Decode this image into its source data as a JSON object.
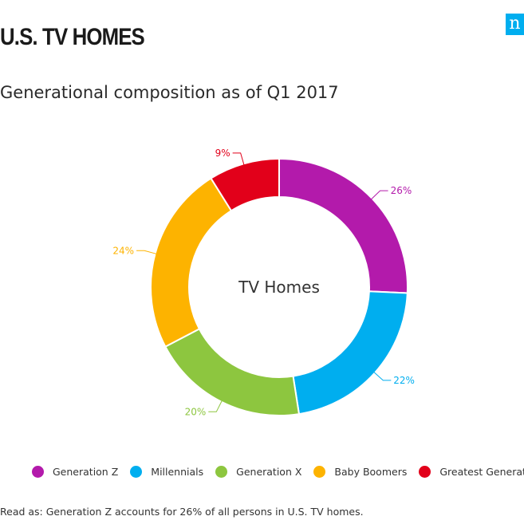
{
  "header": {
    "title": "U.S. TV HOMES",
    "subtitle": "Generational composition as of Q1 2017",
    "logo_text": "n"
  },
  "colors": {
    "brand": "#00aeef"
  },
  "chart_data": {
    "type": "pie",
    "variant": "donut",
    "center_label": "TV Homes",
    "categories": [
      "Generation Z",
      "Millennials",
      "Generation X",
      "Baby Boomers",
      "Greatest Generation"
    ],
    "values": [
      26,
      22,
      20,
      24,
      9
    ],
    "value_labels": [
      "26%",
      "22%",
      "20%",
      "24%",
      "9%"
    ],
    "colors": [
      "#b31aab",
      "#00aeef",
      "#8dc63f",
      "#fdb300",
      "#e2001a"
    ],
    "legend_position": "bottom"
  },
  "footnote": "Read as: Generation Z accounts for 26% of all persons in U.S. TV homes."
}
